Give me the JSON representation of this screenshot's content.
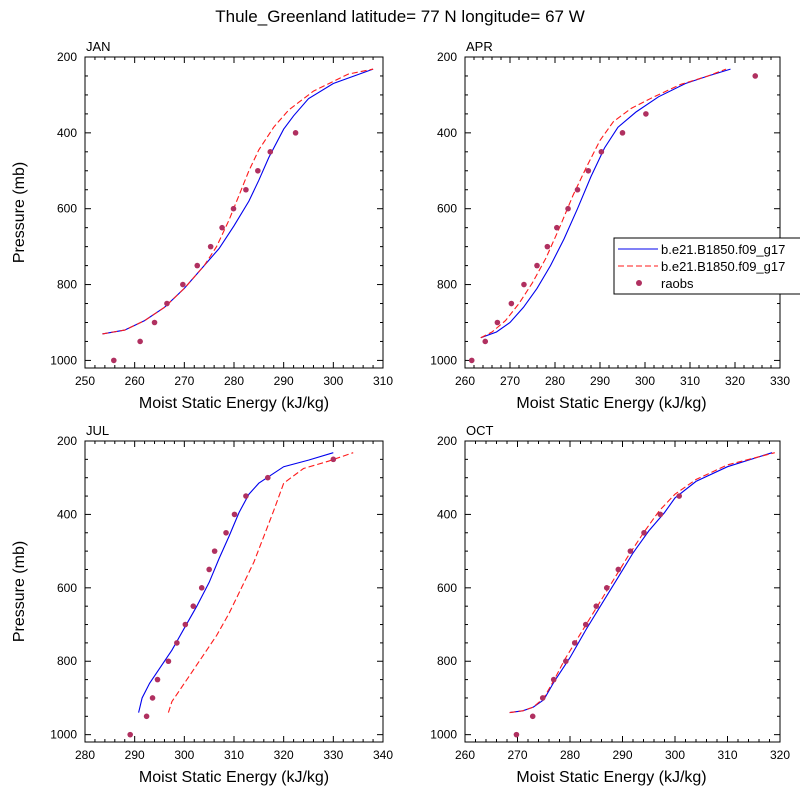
{
  "figure": {
    "title": "Thule_Greenland  latitude= 77 N longitude= 67 W"
  },
  "legend": {
    "entries": [
      {
        "label": "b.e21.B1850.f09_g17",
        "style": "solid",
        "color": "#0000ee"
      },
      {
        "label": "b.e21.B1850.f09_g17",
        "style": "dashed",
        "color": "#ff1a1a"
      },
      {
        "label": "raobs",
        "style": "marker",
        "color": "#b03060"
      }
    ]
  },
  "chart_data": [
    {
      "type": "line",
      "title": "JAN",
      "xlabel": "Moist Static Energy (kJ/kg)",
      "ylabel": "Pressure (mb)",
      "xlim": [
        250,
        310
      ],
      "ylim": [
        1020,
        200
      ],
      "xticks": [
        250,
        260,
        270,
        280,
        290,
        300,
        310
      ],
      "yticks": [
        200,
        400,
        600,
        800,
        1000
      ],
      "series": [
        {
          "style": "solid",
          "color": "#0000ee",
          "points": [
            [
              253.5,
              930
            ],
            [
              258,
              920
            ],
            [
              262,
              895
            ],
            [
              266,
              860
            ],
            [
              270,
              810
            ],
            [
              274,
              750
            ],
            [
              277,
              705
            ],
            [
              280,
              645
            ],
            [
              283,
              580
            ],
            [
              285,
              525
            ],
            [
              287,
              465
            ],
            [
              290,
              390
            ],
            [
              292,
              355
            ],
            [
              295,
              310
            ],
            [
              300,
              270
            ],
            [
              308,
              232
            ]
          ]
        },
        {
          "style": "dashed",
          "color": "#ff1a1a",
          "points": [
            [
              253.5,
              930
            ],
            [
              258,
              920
            ],
            [
              262,
              895
            ],
            [
              266,
              860
            ],
            [
              270,
              810
            ],
            [
              274,
              750
            ],
            [
              276.5,
              700
            ],
            [
              279,
              630
            ],
            [
              281,
              565
            ],
            [
              283,
              500
            ],
            [
              285,
              445
            ],
            [
              288,
              385
            ],
            [
              291,
              340
            ],
            [
              296,
              290
            ],
            [
              303,
              245
            ],
            [
              308,
              232
            ]
          ]
        },
        {
          "style": "marker",
          "color": "#b03060",
          "points": [
            [
              255.8,
              1000
            ],
            [
              261.1,
              950
            ],
            [
              264,
              900
            ],
            [
              266.5,
              850
            ],
            [
              269.7,
              800
            ],
            [
              272.6,
              750
            ],
            [
              275.3,
              700
            ],
            [
              277.6,
              650
            ],
            [
              279.9,
              600
            ],
            [
              282.4,
              550
            ],
            [
              284.8,
              500
            ],
            [
              287.3,
              450
            ],
            [
              292.4,
              400
            ]
          ]
        }
      ]
    },
    {
      "type": "line",
      "title": "APR",
      "xlabel": "Moist Static Energy (kJ/kg)",
      "ylabel": "",
      "xlim": [
        260,
        330
      ],
      "ylim": [
        1020,
        200
      ],
      "xticks": [
        260,
        270,
        280,
        290,
        300,
        310,
        320,
        330
      ],
      "yticks": [
        200,
        400,
        600,
        800,
        1000
      ],
      "series": [
        {
          "style": "solid",
          "color": "#0000ee",
          "points": [
            [
              263.5,
              940
            ],
            [
              267,
              925
            ],
            [
              270,
              900
            ],
            [
              273,
              860
            ],
            [
              276,
              810
            ],
            [
              279,
              750
            ],
            [
              282,
              680
            ],
            [
              285,
              600
            ],
            [
              288,
              515
            ],
            [
              291,
              440
            ],
            [
              294,
              385
            ],
            [
              298,
              345
            ],
            [
              303,
              305
            ],
            [
              309,
              270
            ],
            [
              314,
              250
            ],
            [
              319,
              232
            ]
          ]
        },
        {
          "style": "dashed",
          "color": "#ff1a1a",
          "points": [
            [
              263.5,
              940
            ],
            [
              266,
              925
            ],
            [
              269,
              895
            ],
            [
              272,
              850
            ],
            [
              275,
              795
            ],
            [
              278,
              730
            ],
            [
              281,
              650
            ],
            [
              284,
              565
            ],
            [
              287,
              490
            ],
            [
              290,
              420
            ],
            [
              293,
              370
            ],
            [
              297,
              335
            ],
            [
              302,
              305
            ],
            [
              308,
              272
            ],
            [
              314,
              250
            ],
            [
              318,
              232
            ]
          ]
        },
        {
          "style": "marker",
          "color": "#b03060",
          "points": [
            [
              261.5,
              1000
            ],
            [
              264.5,
              950
            ],
            [
              267.2,
              900
            ],
            [
              270.3,
              850
            ],
            [
              273.1,
              800
            ],
            [
              276,
              750
            ],
            [
              278.3,
              700
            ],
            [
              280.4,
              650
            ],
            [
              282.9,
              600
            ],
            [
              285,
              550
            ],
            [
              287.4,
              500
            ],
            [
              290.3,
              450
            ],
            [
              295,
              400
            ],
            [
              300.2,
              350
            ],
            [
              324.5,
              250
            ]
          ]
        }
      ]
    },
    {
      "type": "line",
      "title": "JUL",
      "xlabel": "Moist Static Energy (kJ/kg)",
      "ylabel": "Pressure (mb)",
      "xlim": [
        280,
        340
      ],
      "ylim": [
        1020,
        200
      ],
      "xticks": [
        280,
        290,
        300,
        310,
        320,
        330,
        340
      ],
      "yticks": [
        200,
        400,
        600,
        800,
        1000
      ],
      "series": [
        {
          "style": "solid",
          "color": "#0000ee",
          "points": [
            [
              290.8,
              940
            ],
            [
              291.5,
              900
            ],
            [
              293,
              860
            ],
            [
              295,
              820
            ],
            [
              297.5,
              770
            ],
            [
              300,
              710
            ],
            [
              302.5,
              650
            ],
            [
              305,
              585
            ],
            [
              307,
              520
            ],
            [
              309,
              460
            ],
            [
              311,
              395
            ],
            [
              313,
              345
            ],
            [
              315,
              315
            ],
            [
              320,
              270
            ],
            [
              325,
              252
            ],
            [
              330,
              232
            ]
          ]
        },
        {
          "style": "dashed",
          "color": "#ff1a1a",
          "points": [
            [
              296.8,
              940
            ],
            [
              297.5,
              910
            ],
            [
              299,
              880
            ],
            [
              301.5,
              830
            ],
            [
              304,
              780
            ],
            [
              306.5,
              730
            ],
            [
              309,
              670
            ],
            [
              311.5,
              600
            ],
            [
              314,
              530
            ],
            [
              316,
              460
            ],
            [
              318,
              390
            ],
            [
              320,
              315
            ],
            [
              324,
              275
            ],
            [
              329,
              255
            ],
            [
              334,
              232
            ]
          ]
        },
        {
          "style": "marker",
          "color": "#b03060",
          "points": [
            [
              289.1,
              1000
            ],
            [
              292.4,
              950
            ],
            [
              293.6,
              900
            ],
            [
              294.6,
              850
            ],
            [
              296.8,
              800
            ],
            [
              298.5,
              750
            ],
            [
              300.2,
              700
            ],
            [
              301.8,
              650
            ],
            [
              303.5,
              600
            ],
            [
              305,
              550
            ],
            [
              306.1,
              500
            ],
            [
              308.4,
              450
            ],
            [
              310.1,
              400
            ],
            [
              312.4,
              350
            ],
            [
              316.8,
              300
            ],
            [
              330,
              250
            ]
          ]
        }
      ]
    },
    {
      "type": "line",
      "title": "OCT",
      "xlabel": "Moist Static Energy (kJ/kg)",
      "ylabel": "",
      "xlim": [
        260,
        320
      ],
      "ylim": [
        1020,
        200
      ],
      "xticks": [
        260,
        270,
        280,
        290,
        300,
        310,
        320
      ],
      "yticks": [
        200,
        400,
        600,
        800,
        1000
      ],
      "series": [
        {
          "style": "solid",
          "color": "#0000ee",
          "points": [
            [
              268.5,
              940
            ],
            [
              271,
              935
            ],
            [
              273,
              925
            ],
            [
              275,
              905
            ],
            [
              277,
              855
            ],
            [
              280,
              790
            ],
            [
              283,
              715
            ],
            [
              286,
              645
            ],
            [
              289,
              575
            ],
            [
              292,
              505
            ],
            [
              295,
              445
            ],
            [
              298,
              395
            ],
            [
              300,
              355
            ],
            [
              304,
              310
            ],
            [
              310,
              270
            ],
            [
              318.5,
              232
            ]
          ]
        },
        {
          "style": "dashed",
          "color": "#ff1a1a",
          "points": [
            [
              268.5,
              940
            ],
            [
              271,
              935
            ],
            [
              273,
              925
            ],
            [
              275,
              900
            ],
            [
              277,
              850
            ],
            [
              279,
              795
            ],
            [
              282,
              725
            ],
            [
              285,
              655
            ],
            [
              288,
              585
            ],
            [
              291,
              515
            ],
            [
              294,
              450
            ],
            [
              297,
              390
            ],
            [
              300,
              345
            ],
            [
              304,
              305
            ],
            [
              310,
              265
            ],
            [
              319,
              232
            ]
          ]
        },
        {
          "style": "marker",
          "color": "#b03060",
          "points": [
            [
              269.8,
              1000
            ],
            [
              272.9,
              950
            ],
            [
              274.8,
              900
            ],
            [
              276.9,
              850
            ],
            [
              279.2,
              800
            ],
            [
              280.9,
              750
            ],
            [
              283,
              700
            ],
            [
              285,
              650
            ],
            [
              287,
              600
            ],
            [
              289.2,
              550
            ],
            [
              291.5,
              500
            ],
            [
              294.1,
              450
            ],
            [
              297.2,
              400
            ],
            [
              300.8,
              350
            ]
          ]
        }
      ]
    }
  ]
}
